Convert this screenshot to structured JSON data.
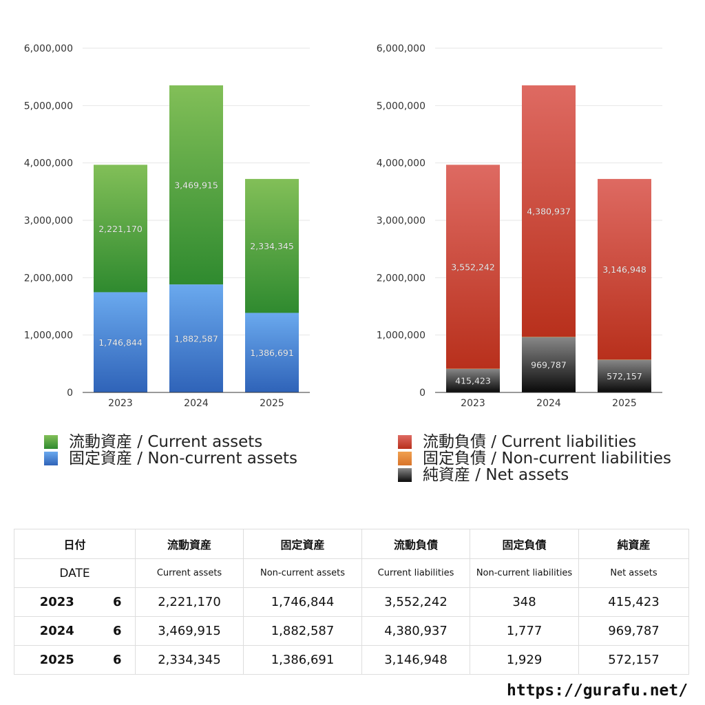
{
  "chart_data": [
    {
      "type": "bar",
      "stacked": true,
      "categories": [
        "2023",
        "2024",
        "2025"
      ],
      "ylim": [
        0,
        6000000
      ],
      "yticks": [
        0,
        1000000,
        2000000,
        3000000,
        4000000,
        5000000,
        6000000
      ],
      "ytick_labels": [
        "0",
        "1,000,000",
        "2,000,000",
        "3,000,000",
        "4,000,000",
        "5,000,000",
        "6,000,000"
      ],
      "grid": true,
      "legend_position": "bottom",
      "series": [
        {
          "name": "固定資産 / Non-current assets",
          "values": [
            1746844,
            1882587,
            1386691
          ],
          "labels": [
            "1,746,844",
            "1,882,587",
            "1,386,691"
          ],
          "color_top": "#6aa9ee",
          "color_bottom": "#2f63b8"
        },
        {
          "name": "流動資産 / Current assets",
          "values": [
            2221170,
            3469915,
            2334345
          ],
          "labels": [
            "2,221,170",
            "3,469,915",
            "2,334,345"
          ],
          "color_top": "#82bf58",
          "color_bottom": "#2f8a2f"
        }
      ]
    },
    {
      "type": "bar",
      "stacked": true,
      "categories": [
        "2023",
        "2024",
        "2025"
      ],
      "ylim": [
        0,
        6000000
      ],
      "yticks": [
        0,
        1000000,
        2000000,
        3000000,
        4000000,
        5000000,
        6000000
      ],
      "ytick_labels": [
        "0",
        "1,000,000",
        "2,000,000",
        "3,000,000",
        "4,000,000",
        "5,000,000",
        "6,000,000"
      ],
      "grid": true,
      "legend_position": "bottom",
      "series": [
        {
          "name": "純資産 / Net assets",
          "values": [
            415423,
            969787,
            572157
          ],
          "labels": [
            "415,423",
            "969,787",
            "572,157"
          ],
          "color_top": "#888888",
          "color_bottom": "#0a0a0a"
        },
        {
          "name": "固定負債 / Non-current liabilities",
          "values": [
            348,
            1777,
            1929
          ],
          "labels": [
            "348",
            "1,777",
            "1,929"
          ],
          "color_top": "#f0a050",
          "color_bottom": "#d9742a"
        },
        {
          "name": "流動負債 / Current liabilities",
          "values": [
            3552242,
            4380937,
            3146948
          ],
          "labels": [
            "3,552,242",
            "4,380,937",
            "3,146,948"
          ],
          "color_top": "#de6a62",
          "color_bottom": "#b8301c"
        }
      ]
    }
  ],
  "legend_left": [
    {
      "label": "流動資産 / Current assets",
      "color_top": "#82bf58",
      "color_bottom": "#2f8a2f"
    },
    {
      "label": "固定資産 / Non-current assets",
      "color_top": "#6aa9ee",
      "color_bottom": "#2f63b8"
    }
  ],
  "legend_right": [
    {
      "label": "流動負債 / Current liabilities",
      "color_top": "#de6a62",
      "color_bottom": "#b8301c"
    },
    {
      "label": "固定負債 / Non-current liabilities",
      "color_top": "#f0a050",
      "color_bottom": "#d9742a"
    },
    {
      "label": "純資産 / Net assets",
      "color_top": "#888888",
      "color_bottom": "#0a0a0a"
    }
  ],
  "table": {
    "date_jp": "日付",
    "date_en": "DATE",
    "headers_jp": [
      "流動資産",
      "固定資産",
      "流動負債",
      "固定負債",
      "純資産"
    ],
    "headers_en": [
      "Current assets",
      "Non-current assets",
      "Current liabilities",
      "Non-current liabilities",
      "Net assets"
    ],
    "rows": [
      {
        "year": "2023",
        "month": "6",
        "values": [
          "2,221,170",
          "1,746,844",
          "3,552,242",
          "348",
          "415,423"
        ]
      },
      {
        "year": "2024",
        "month": "6",
        "values": [
          "3,469,915",
          "1,882,587",
          "4,380,937",
          "1,777",
          "969,787"
        ]
      },
      {
        "year": "2025",
        "month": "6",
        "values": [
          "2,334,345",
          "1,386,691",
          "3,146,948",
          "1,929",
          "572,157"
        ]
      }
    ]
  },
  "site_url": "https://gurafu.net/"
}
